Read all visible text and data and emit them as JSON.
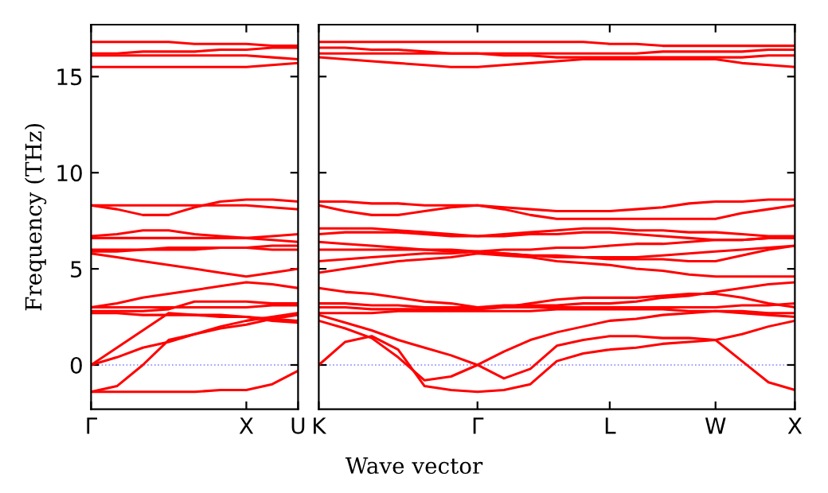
{
  "chart_data": [
    {
      "type": "line",
      "ylabel": "Frequency (THz)",
      "categories": [
        "Γ",
        null,
        null,
        null,
        null,
        null,
        "X",
        null,
        "U"
      ],
      "ylim": [
        -2.3,
        17.7
      ],
      "yticks": [
        0,
        5,
        10,
        15
      ],
      "grid": false,
      "legend": false,
      "marker": "none",
      "line_style": "solid",
      "ref_lines": [
        {
          "axis": "y",
          "value": 0,
          "color": "#8080ff",
          "line_style": "dotted"
        }
      ],
      "series": [
        {
          "color": "#ff0000",
          "values": [
            16.8,
            16.8,
            16.8,
            16.8,
            16.7,
            16.7,
            16.7,
            16.6,
            16.6
          ]
        },
        {
          "color": "#ff0000",
          "values": [
            16.2,
            16.2,
            16.3,
            16.3,
            16.3,
            16.4,
            16.4,
            16.5,
            16.5
          ]
        },
        {
          "color": "#ff0000",
          "values": [
            16.1,
            16.1,
            16.1,
            16.1,
            16.1,
            16.1,
            16.1,
            16.0,
            15.9
          ]
        },
        {
          "color": "#ff0000",
          "values": [
            15.5,
            15.5,
            15.5,
            15.5,
            15.5,
            15.5,
            15.5,
            15.6,
            15.7
          ]
        },
        {
          "color": "#ff0000",
          "values": [
            8.3,
            8.3,
            8.3,
            8.3,
            8.3,
            8.3,
            8.3,
            8.2,
            8.1
          ]
        },
        {
          "color": "#ff0000",
          "values": [
            8.3,
            8.1,
            7.8,
            7.8,
            8.2,
            8.5,
            8.6,
            8.6,
            8.5
          ]
        },
        {
          "color": "#ff0000",
          "values": [
            6.7,
            6.8,
            7.0,
            7.0,
            6.8,
            6.7,
            6.6,
            6.7,
            6.8
          ]
        },
        {
          "color": "#ff0000",
          "values": [
            6.6,
            6.6,
            6.6,
            6.6,
            6.6,
            6.6,
            6.6,
            6.5,
            6.4
          ]
        },
        {
          "color": "#ff0000",
          "values": [
            6.0,
            6.0,
            6.0,
            6.1,
            6.1,
            6.1,
            6.1,
            6.2,
            6.2
          ]
        },
        {
          "color": "#ff0000",
          "values": [
            5.9,
            5.9,
            6.0,
            6.0,
            6.0,
            6.1,
            6.1,
            6.0,
            6.0
          ]
        },
        {
          "color": "#ff0000",
          "values": [
            5.8,
            5.6,
            5.4,
            5.2,
            5.0,
            4.8,
            4.6,
            4.8,
            5.0
          ]
        },
        {
          "color": "#ff0000",
          "values": [
            3.0,
            3.2,
            3.5,
            3.7,
            3.9,
            4.1,
            4.3,
            4.2,
            4.0
          ]
        },
        {
          "color": "#ff0000",
          "values": [
            3.0,
            3.0,
            3.0,
            3.0,
            3.0,
            3.0,
            3.0,
            3.1,
            3.1
          ]
        },
        {
          "color": "#ff0000",
          "values": [
            2.8,
            2.8,
            2.8,
            2.9,
            3.3,
            3.3,
            3.3,
            3.2,
            3.2
          ]
        },
        {
          "color": "#ff0000",
          "values": [
            2.7,
            2.7,
            2.6,
            2.6,
            2.6,
            2.5,
            2.5,
            2.4,
            2.3
          ]
        },
        {
          "color": "#ff0000",
          "values": [
            0,
            0.9,
            1.8,
            2.7,
            2.6,
            2.6,
            2.5,
            2.3,
            2.2
          ]
        },
        {
          "color": "#ff0000",
          "values": [
            0,
            0.4,
            0.9,
            1.2,
            1.6,
            2.0,
            2.3,
            2.5,
            2.7
          ]
        },
        {
          "color": "#ff0000",
          "values": [
            -1.4,
            -1.1,
            0,
            1.3,
            1.6,
            1.9,
            2.1,
            2.4,
            2.6
          ]
        },
        {
          "color": "#ff0000",
          "values": [
            -1.4,
            -1.4,
            -1.4,
            -1.4,
            -1.4,
            -1.3,
            -1.3,
            -1.0,
            -0.3
          ]
        }
      ]
    },
    {
      "type": "line",
      "xlabel": "Wave vector",
      "categories": [
        "K",
        null,
        null,
        null,
        null,
        null,
        "Γ",
        null,
        null,
        null,
        null,
        "L",
        null,
        null,
        null,
        "W",
        null,
        null,
        "X"
      ],
      "ylim": [
        -2.3,
        17.7
      ],
      "yticks": [
        {
          "value": 0,
          "label": null
        },
        {
          "value": 5,
          "label": null
        },
        {
          "value": 10,
          "label": null
        },
        {
          "value": 15,
          "label": null
        }
      ],
      "tick_labels": "x",
      "grid": false,
      "legend": false,
      "marker": "none",
      "line_style": "solid",
      "ref_lines": [
        {
          "axis": "y",
          "value": 0,
          "color": "#8080ff",
          "line_style": "dotted"
        }
      ],
      "series": [
        {
          "color": "#ff0000",
          "values": [
            16.8,
            16.8,
            16.8,
            16.8,
            16.8,
            16.8,
            16.8,
            16.8,
            16.8,
            16.8,
            16.8,
            16.7,
            16.7,
            16.6,
            16.6,
            16.6,
            16.6,
            16.6,
            16.6
          ]
        },
        {
          "color": "#ff0000",
          "values": [
            16.5,
            16.5,
            16.4,
            16.4,
            16.3,
            16.2,
            16.2,
            16.2,
            16.2,
            16.2,
            16.2,
            16.2,
            16.2,
            16.3,
            16.3,
            16.3,
            16.3,
            16.4,
            16.4
          ]
        },
        {
          "color": "#ff0000",
          "values": [
            16.2,
            16.2,
            16.2,
            16.2,
            16.2,
            16.2,
            16.2,
            16.1,
            16.1,
            16.0,
            16.0,
            16.0,
            16.0,
            16.0,
            16.0,
            16.0,
            16.0,
            16.1,
            16.1
          ]
        },
        {
          "color": "#ff0000",
          "values": [
            16.0,
            15.9,
            15.8,
            15.7,
            15.6,
            15.5,
            15.5,
            15.6,
            15.7,
            15.8,
            15.9,
            15.9,
            15.9,
            15.9,
            15.9,
            15.9,
            15.7,
            15.6,
            15.5
          ]
        },
        {
          "color": "#ff0000",
          "values": [
            8.5,
            8.5,
            8.4,
            8.4,
            8.3,
            8.3,
            8.3,
            8.2,
            8.1,
            8.0,
            8.0,
            8.0,
            8.1,
            8.2,
            8.4,
            8.5,
            8.5,
            8.6,
            8.6
          ]
        },
        {
          "color": "#ff0000",
          "values": [
            8.3,
            8.0,
            7.8,
            7.8,
            8.0,
            8.2,
            8.3,
            8.1,
            7.8,
            7.6,
            7.6,
            7.6,
            7.6,
            7.6,
            7.6,
            7.6,
            7.9,
            8.1,
            8.3
          ]
        },
        {
          "color": "#ff0000",
          "values": [
            7.1,
            7.1,
            7.1,
            7.0,
            6.9,
            6.8,
            6.7,
            6.8,
            6.9,
            7.0,
            7.1,
            7.1,
            7.0,
            7.0,
            6.9,
            6.9,
            6.8,
            6.7,
            6.7
          ]
        },
        {
          "color": "#ff0000",
          "values": [
            6.8,
            6.9,
            6.9,
            6.9,
            6.8,
            6.7,
            6.7,
            6.7,
            6.8,
            6.8,
            6.9,
            6.9,
            6.8,
            6.7,
            6.6,
            6.5,
            6.5,
            6.6,
            6.6
          ]
        },
        {
          "color": "#ff0000",
          "values": [
            6.4,
            6.3,
            6.2,
            6.1,
            6.0,
            6.0,
            5.9,
            6.0,
            6.0,
            6.1,
            6.1,
            6.2,
            6.3,
            6.3,
            6.4,
            6.5,
            6.5,
            6.6,
            6.6
          ]
        },
        {
          "color": "#ff0000",
          "values": [
            6.0,
            6.0,
            6.0,
            6.0,
            6.0,
            5.9,
            5.9,
            5.8,
            5.7,
            5.7,
            5.6,
            5.6,
            5.6,
            5.7,
            5.8,
            5.9,
            6.0,
            6.1,
            6.2
          ]
        },
        {
          "color": "#ff0000",
          "values": [
            5.4,
            5.5,
            5.6,
            5.7,
            5.8,
            5.8,
            5.9,
            5.8,
            5.7,
            5.6,
            5.6,
            5.5,
            5.5,
            5.5,
            5.4,
            5.4,
            5.7,
            6.0,
            6.2
          ]
        },
        {
          "color": "#ff0000",
          "values": [
            4.8,
            5.0,
            5.2,
            5.4,
            5.5,
            5.6,
            5.8,
            5.7,
            5.6,
            5.4,
            5.3,
            5.2,
            5.0,
            4.9,
            4.7,
            4.6,
            4.6,
            4.6,
            4.6
          ]
        },
        {
          "color": "#ff0000",
          "values": [
            4.0,
            3.8,
            3.7,
            3.5,
            3.3,
            3.2,
            3.0,
            3.1,
            3.1,
            3.1,
            3.2,
            3.2,
            3.3,
            3.5,
            3.6,
            3.8,
            4.0,
            4.2,
            4.3
          ]
        },
        {
          "color": "#ff0000",
          "values": [
            3.2,
            3.2,
            3.1,
            3.1,
            3.0,
            3.0,
            3.0,
            3.0,
            3.0,
            3.0,
            3.0,
            3.0,
            3.0,
            3.0,
            3.0,
            3.0,
            3.1,
            3.1,
            3.2
          ]
        },
        {
          "color": "#ff0000",
          "values": [
            3.0,
            3.0,
            2.9,
            2.9,
            2.9,
            2.9,
            2.9,
            3.0,
            3.2,
            3.4,
            3.5,
            3.5,
            3.5,
            3.6,
            3.7,
            3.7,
            3.5,
            3.2,
            3.0
          ]
        },
        {
          "color": "#ff0000",
          "values": [
            2.7,
            2.7,
            2.7,
            2.8,
            2.8,
            2.8,
            2.8,
            2.8,
            2.8,
            2.9,
            2.9,
            2.9,
            2.9,
            2.9,
            2.8,
            2.8,
            2.8,
            2.7,
            2.7
          ]
        },
        {
          "color": "#ff0000",
          "values": [
            2.6,
            2.2,
            1.8,
            1.3,
            0.9,
            0.5,
            0,
            0.7,
            1.3,
            1.7,
            2.0,
            2.3,
            2.4,
            2.6,
            2.7,
            2.8,
            2.7,
            2.6,
            2.5
          ]
        },
        {
          "color": "#ff0000",
          "values": [
            2.3,
            1.9,
            1.4,
            0.4,
            -0.8,
            -0.6,
            0,
            -0.7,
            -0.2,
            1.0,
            1.3,
            1.5,
            1.5,
            1.4,
            1.4,
            1.3,
            1.6,
            2.0,
            2.3
          ]
        },
        {
          "color": "#ff0000",
          "values": [
            0,
            1.2,
            1.5,
            0.8,
            -1.1,
            -1.3,
            -1.4,
            -1.3,
            -1.0,
            0.2,
            0.6,
            0.8,
            0.9,
            1.1,
            1.2,
            1.3,
            0.2,
            -0.9,
            -1.3
          ]
        }
      ]
    }
  ]
}
